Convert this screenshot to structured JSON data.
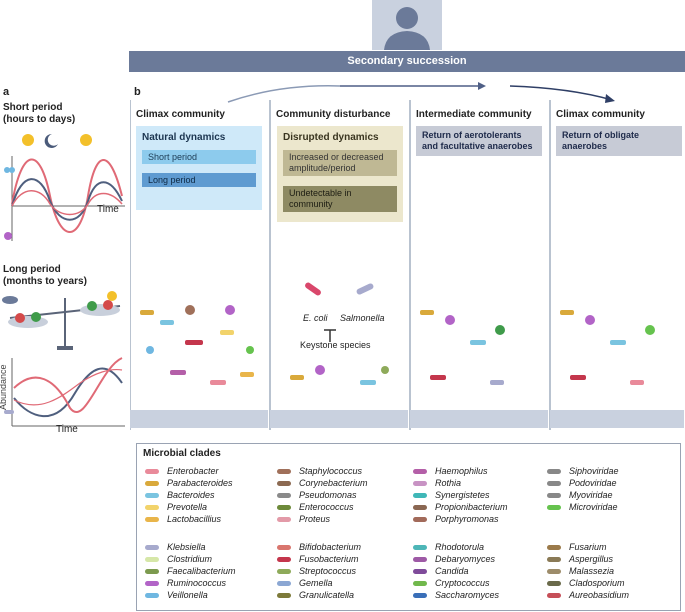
{
  "top_bar": {
    "title": "Secondary succession"
  },
  "panel_a": {
    "label": "a",
    "short_title": "Short period",
    "short_sub": "(hours to days)",
    "long_title": "Long period",
    "long_sub": "(months to years)",
    "y_label": "Abundance",
    "x_label": "Time"
  },
  "panel_b": {
    "label": "b",
    "columns": [
      {
        "title": "Climax community"
      },
      {
        "title": "Community disturbance"
      },
      {
        "title": "Intermediate community"
      },
      {
        "title": "Climax community"
      }
    ],
    "natural": {
      "title": "Natural dynamics",
      "short": "Short period",
      "long": "Long period"
    },
    "disrupted": {
      "title": "Disrupted dynamics",
      "item1": "Increased or decreased amplitude/period",
      "item2": "Undetectable in community"
    },
    "intermediate": {
      "box": "Return of aerotolerants and facultative anaerobes"
    },
    "climax2": {
      "box": "Return of obligate anaerobes"
    },
    "ecoli": "E. coli",
    "salmonella": "Salmonella",
    "keystone": "Keystone species"
  },
  "legend": {
    "title": "Microbial clades",
    "groups": [
      {
        "items": [
          "Enterobacter",
          "Parabacteroides",
          "Bacteroides",
          "Prevotella",
          "Lactobacillius"
        ],
        "colors": [
          "#e98a9a",
          "#d9a93b",
          "#7ac4e0",
          "#f2d36b",
          "#e9b54a"
        ]
      },
      {
        "items": [
          "Staphylococcus",
          "Corynebacterium",
          "Pseudomonas",
          "Enterococcus",
          "Proteus"
        ],
        "colors": [
          "#a0705a",
          "#8c6a52",
          "#8a8a8a",
          "#6d8a3a",
          "#e39aa8"
        ]
      },
      {
        "items": [
          "Haemophilus",
          "Rothia",
          "Synergistetes",
          "Propionibacterium",
          "Porphyromonas"
        ],
        "colors": [
          "#b45fa8",
          "#c893c4",
          "#3fb7b7",
          "#8a6752",
          "#a26a5a"
        ]
      },
      {
        "items": [
          "Siphoviridae",
          "Podoviridae",
          "Myoviridae",
          "Microviridae"
        ],
        "colors": [
          "#888",
          "#888",
          "#888",
          "#66c34e"
        ]
      },
      {
        "items": [
          "Klebsiella",
          "Clostridium",
          "Faecalibacterium",
          "Ruminococcus",
          "Veillonella"
        ],
        "colors": [
          "#a7aacd",
          "#d6e7a8",
          "#7c9a4e",
          "#b264c7",
          "#6fb7e1"
        ]
      },
      {
        "items": [
          "Bifidobacterium",
          "Fusobacterium",
          "Streptococcus",
          "Gemella",
          "Granulicatella"
        ],
        "colors": [
          "#d9766e",
          "#c4364c",
          "#8eaa5a",
          "#8ba7d3",
          "#7d7a3a"
        ]
      },
      {
        "items": [
          "Rhodotorula",
          "Debaryomyces",
          "Candida",
          "Cryptococcus",
          "Saccharomyces"
        ],
        "colors": [
          "#4db6b7",
          "#9e5aa6",
          "#7f4b9a",
          "#71b84c",
          "#3a6fb8"
        ]
      },
      {
        "items": [
          "Fusarium",
          "Aspergillus",
          "Malassezia",
          "Cladosporium",
          "Aureobasidium"
        ],
        "colors": [
          "#9b7a4a",
          "#8a7a56",
          "#9d8c6a",
          "#6a6a4a",
          "#c64f58"
        ]
      }
    ]
  }
}
